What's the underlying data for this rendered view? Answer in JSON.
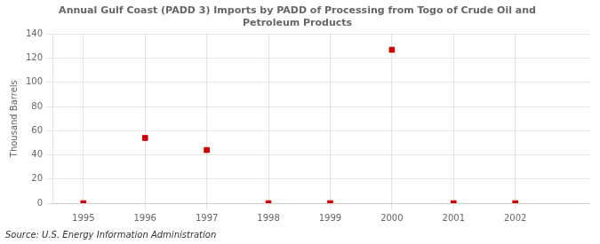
{
  "chart_data": {
    "type": "scatter",
    "title": "Annual Gulf Coast (PADD 3) Imports by PADD of Processing from Togo of Crude Oil and\nPetroleum Products",
    "ylabel": "Thousand Barrels",
    "source": "Source: U.S. Energy Information Administration",
    "x": [
      1995,
      1996,
      1997,
      1998,
      1999,
      2000,
      2001,
      2002
    ],
    "values": [
      0,
      54,
      44,
      0,
      0,
      127,
      0,
      0
    ],
    "color": "#cc0000",
    "marker": "square",
    "xlim": [
      1994.5,
      2003.2
    ],
    "xticks": [
      1995,
      1996,
      1997,
      1998,
      1999,
      2000,
      2001,
      2002
    ],
    "ylim": [
      0,
      140
    ],
    "yticks": [
      0,
      20,
      40,
      60,
      80,
      100,
      120,
      140
    ],
    "grid": true
  }
}
